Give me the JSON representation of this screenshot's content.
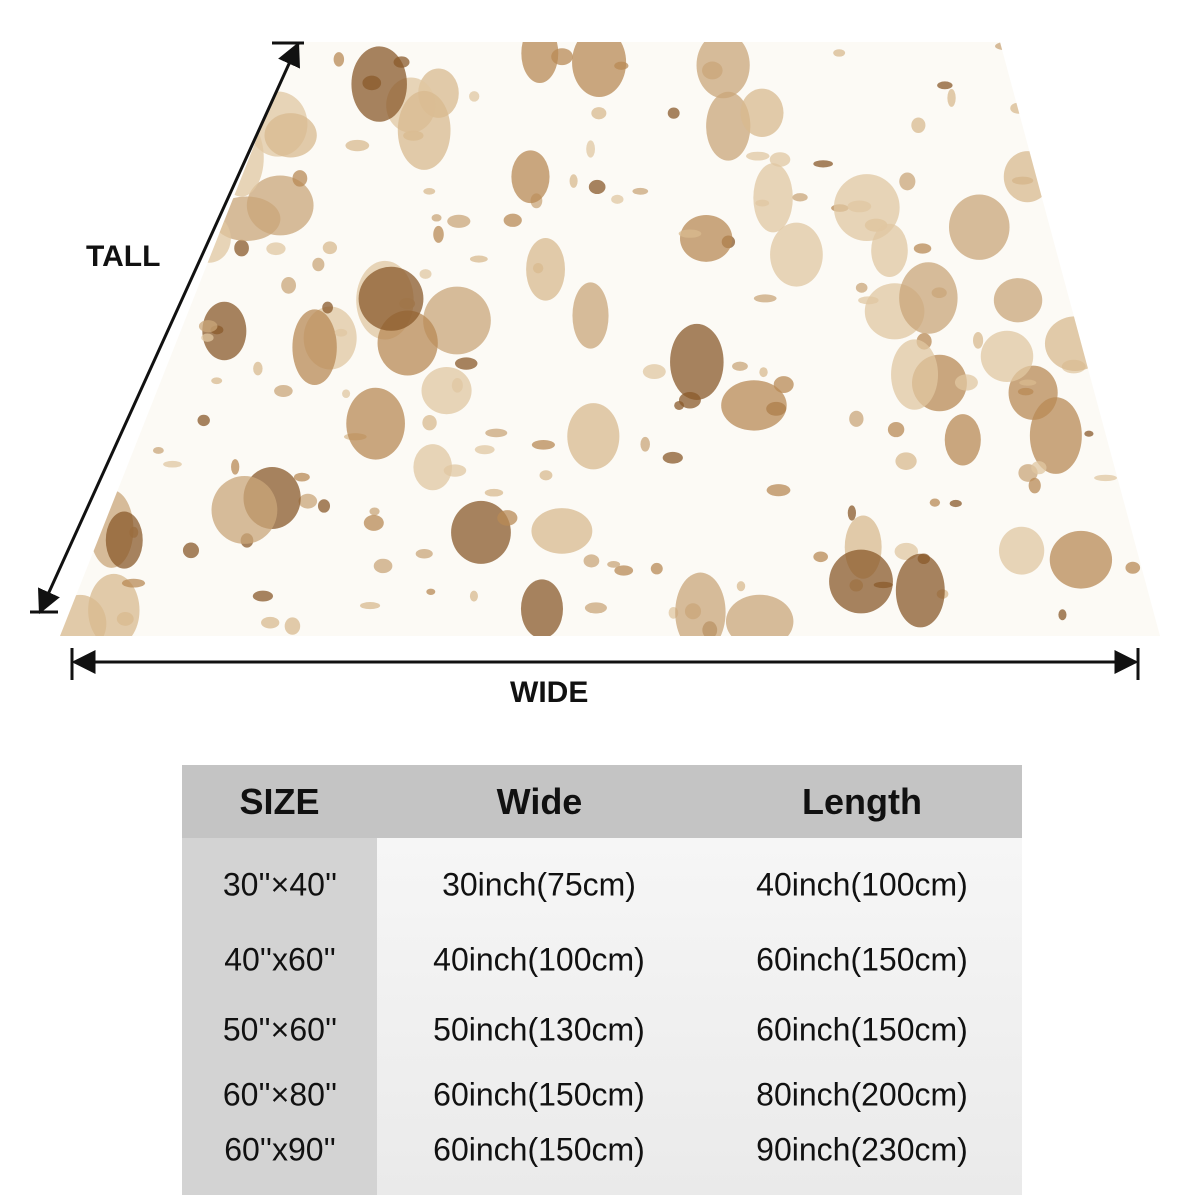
{
  "dimension_labels": {
    "tall": "TALL",
    "wide": "WIDE"
  },
  "table": {
    "header": [
      "SIZE",
      "Wide",
      "Length"
    ],
    "rows": [
      [
        "30''×40''",
        "30inch(75cm)",
        "40inch(100cm)"
      ],
      [
        "40''x60''",
        "40inch(100cm)",
        "60inch(150cm)"
      ],
      [
        "50''×60''",
        "50inch(130cm)",
        "60inch(150cm)"
      ],
      [
        "60''×80''",
        "60inch(150cm)",
        "80inch(200cm)"
      ],
      [
        "60''x90''",
        "60inch(150cm)",
        "90inch(230cm)"
      ]
    ]
  }
}
